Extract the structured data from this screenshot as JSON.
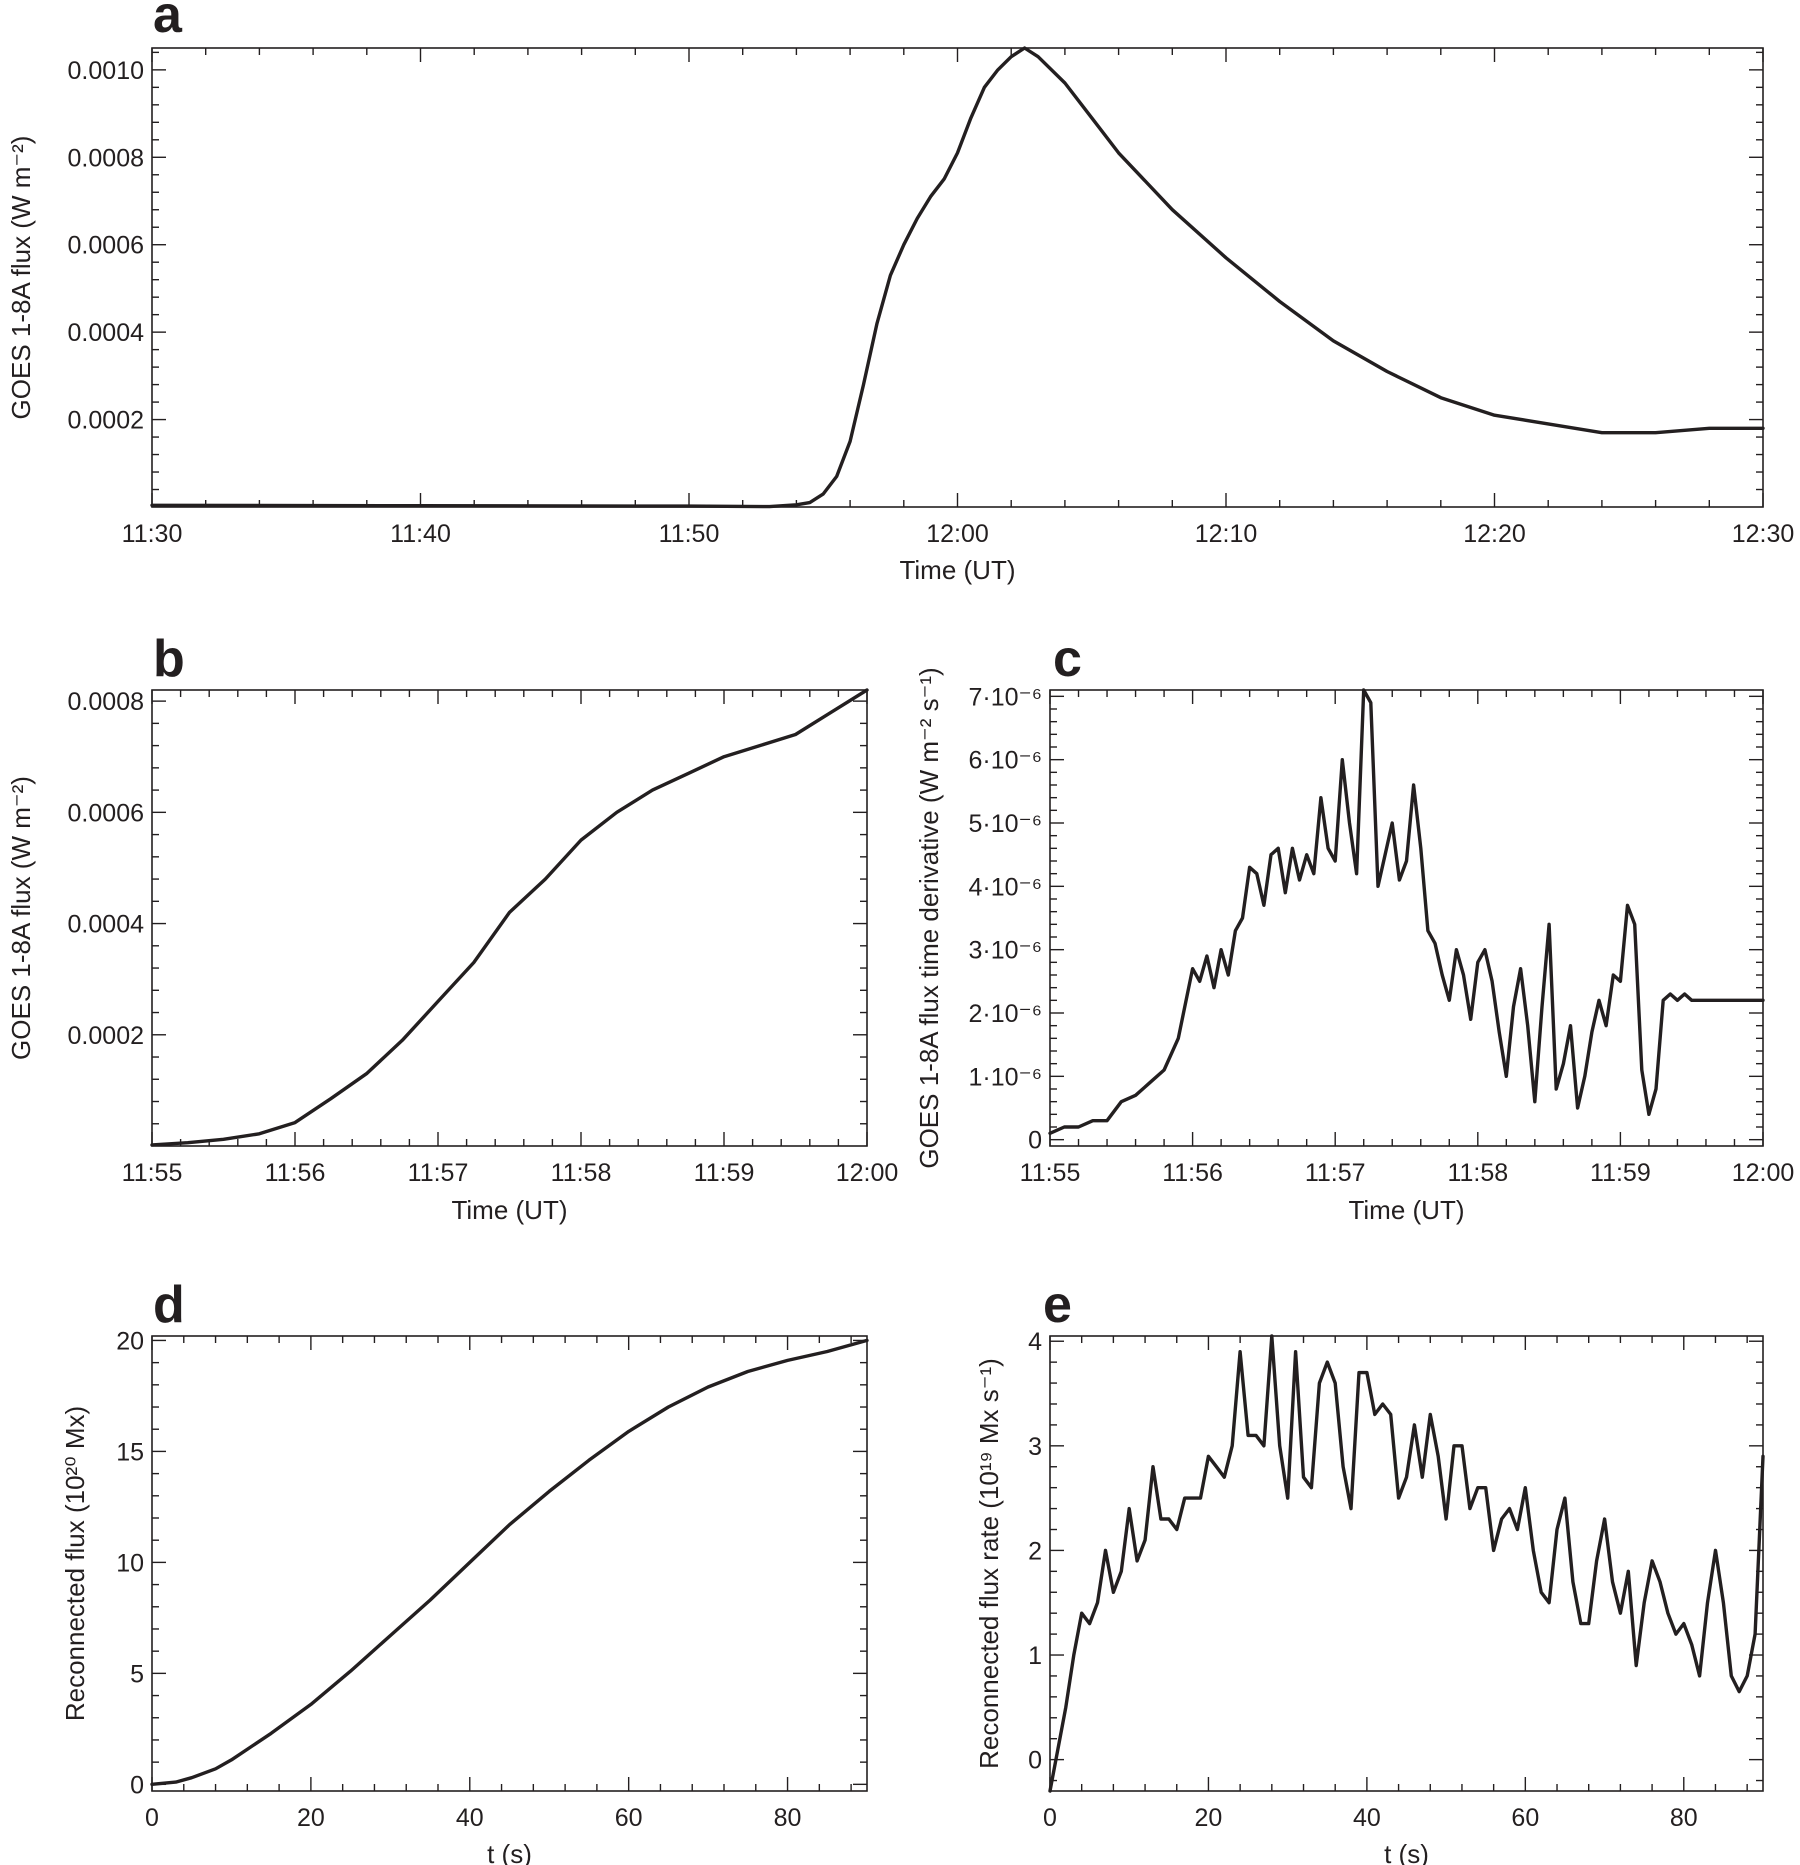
{
  "chart_data": [
    {
      "id": "a",
      "type": "line",
      "panel_label": "a",
      "xlabel": "Time (UT)",
      "ylabel": "GOES 1-8A flux (W m⁻²)",
      "x_units": "minutes after 11:30 UT",
      "xlim": [
        0,
        60
      ],
      "ylim": [
        0,
        0.00105
      ],
      "xticks": [
        {
          "v": 0,
          "label": "11:30"
        },
        {
          "v": 10,
          "label": "11:40"
        },
        {
          "v": 20,
          "label": "11:50"
        },
        {
          "v": 30,
          "label": "12:00"
        },
        {
          "v": 40,
          "label": "12:10"
        },
        {
          "v": 50,
          "label": "12:20"
        },
        {
          "v": 60,
          "label": "12:30"
        }
      ],
      "yticks": [
        {
          "v": 0.0002,
          "label": "0.0002"
        },
        {
          "v": 0.0004,
          "label": "0.0004"
        },
        {
          "v": 0.0006,
          "label": "0.0006"
        },
        {
          "v": 0.0008,
          "label": "0.0008"
        },
        {
          "v": 0.001,
          "label": "0.0010"
        }
      ],
      "series": [
        {
          "name": "GOES 1-8A flux",
          "x": [
            0,
            10,
            20,
            23,
            24,
            24.5,
            25,
            25.5,
            26,
            26.5,
            27,
            27.5,
            28,
            28.5,
            29,
            29.5,
            30,
            30.5,
            31,
            31.5,
            32,
            32.5,
            33,
            34,
            35,
            36,
            38,
            40,
            42,
            44,
            46,
            48,
            50,
            52,
            54,
            56,
            58,
            60
          ],
          "y": [
            4e-06,
            3e-06,
            2e-06,
            1e-06,
            5e-06,
            1e-05,
            3e-05,
            7e-05,
            0.00015,
            0.00028,
            0.00042,
            0.00053,
            0.0006,
            0.00066,
            0.00071,
            0.00075,
            0.00081,
            0.00089,
            0.00096,
            0.001,
            0.00103,
            0.00105,
            0.00103,
            0.00097,
            0.00089,
            0.00081,
            0.00068,
            0.00057,
            0.00047,
            0.00038,
            0.00031,
            0.00025,
            0.00021,
            0.00019,
            0.00017,
            0.00017,
            0.00018,
            0.00018
          ]
        }
      ]
    },
    {
      "id": "b",
      "type": "line",
      "panel_label": "b",
      "xlabel": "Time (UT)",
      "ylabel": "GOES 1-8A flux (W m⁻²)",
      "x_units": "minutes after 11:55 UT",
      "xlim": [
        0,
        5
      ],
      "ylim": [
        0,
        0.00082
      ],
      "xticks": [
        {
          "v": 0,
          "label": "11:55"
        },
        {
          "v": 1,
          "label": "11:56"
        },
        {
          "v": 2,
          "label": "11:57"
        },
        {
          "v": 3,
          "label": "11:58"
        },
        {
          "v": 4,
          "label": "11:59"
        },
        {
          "v": 5,
          "label": "12:00"
        }
      ],
      "yticks": [
        {
          "v": 0.0002,
          "label": "0.0002"
        },
        {
          "v": 0.0004,
          "label": "0.0004"
        },
        {
          "v": 0.0006,
          "label": "0.0006"
        },
        {
          "v": 0.0008,
          "label": "0.0008"
        }
      ],
      "series": [
        {
          "name": "GOES 1-8A flux",
          "x": [
            0,
            0.25,
            0.5,
            0.75,
            1,
            1.25,
            1.5,
            1.75,
            2,
            2.25,
            2.5,
            2.75,
            3,
            3.25,
            3.5,
            3.75,
            4,
            4.25,
            4.5,
            4.75,
            5
          ],
          "y": [
            2e-06,
            6e-06,
            1.2e-05,
            2.2e-05,
            4.2e-05,
            8.5e-05,
            0.00013,
            0.00019,
            0.00026,
            0.00033,
            0.00042,
            0.00048,
            0.00055,
            0.0006,
            0.00064,
            0.00067,
            0.0007,
            0.00072,
            0.00074,
            0.00078,
            0.00082
          ]
        }
      ]
    },
    {
      "id": "c",
      "type": "line",
      "panel_label": "c",
      "xlabel": "Time (UT)",
      "ylabel": "GOES 1-8A flux time derivative (W m⁻² s⁻¹)",
      "x_units": "minutes after 11:55 UT",
      "xlim": [
        0,
        5
      ],
      "ylim": [
        -1e-07,
        7.1e-06
      ],
      "xticks": [
        {
          "v": 0,
          "label": "11:55"
        },
        {
          "v": 1,
          "label": "11:56"
        },
        {
          "v": 2,
          "label": "11:57"
        },
        {
          "v": 3,
          "label": "11:58"
        },
        {
          "v": 4,
          "label": "11:59"
        },
        {
          "v": 5,
          "label": "12:00"
        }
      ],
      "yticks": [
        {
          "v": 0,
          "label": "0"
        },
        {
          "v": 1e-06,
          "label": "1·10⁻⁶"
        },
        {
          "v": 2e-06,
          "label": "2·10⁻⁶"
        },
        {
          "v": 3e-06,
          "label": "3·10⁻⁶"
        },
        {
          "v": 4e-06,
          "label": "4·10⁻⁶"
        },
        {
          "v": 5e-06,
          "label": "5·10⁻⁶"
        },
        {
          "v": 6e-06,
          "label": "6·10⁻⁶"
        },
        {
          "v": 7e-06,
          "label": "7·10⁻⁶"
        }
      ],
      "series": [
        {
          "name": "flux time derivative",
          "x": [
            0,
            0.1,
            0.2,
            0.3,
            0.4,
            0.5,
            0.6,
            0.7,
            0.8,
            0.9,
            1.0,
            1.05,
            1.1,
            1.15,
            1.2,
            1.25,
            1.3,
            1.35,
            1.4,
            1.45,
            1.5,
            1.55,
            1.6,
            1.65,
            1.7,
            1.75,
            1.8,
            1.85,
            1.9,
            1.95,
            2.0,
            2.05,
            2.1,
            2.15,
            2.2,
            2.25,
            2.3,
            2.35,
            2.4,
            2.45,
            2.5,
            2.55,
            2.6,
            2.65,
            2.7,
            2.75,
            2.8,
            2.85,
            2.9,
            2.95,
            3.0,
            3.05,
            3.1,
            3.15,
            3.2,
            3.25,
            3.3,
            3.35,
            3.4,
            3.45,
            3.5,
            3.55,
            3.6,
            3.65,
            3.7,
            3.75,
            3.8,
            3.85,
            3.9,
            3.95,
            4.0,
            4.05,
            4.1,
            4.15,
            4.2,
            4.25,
            4.3,
            4.35,
            4.4,
            4.45,
            4.5,
            4.55,
            4.6,
            4.65,
            4.7,
            4.75,
            4.8,
            4.85,
            4.9,
            4.95,
            5.0
          ],
          "y": [
            1e-07,
            2e-07,
            2e-07,
            3e-07,
            3e-07,
            6e-07,
            7e-07,
            9e-07,
            1.1e-06,
            1.6e-06,
            2.7e-06,
            2.5e-06,
            2.9e-06,
            2.4e-06,
            3e-06,
            2.6e-06,
            3.3e-06,
            3.5e-06,
            4.3e-06,
            4.2e-06,
            3.7e-06,
            4.5e-06,
            4.6e-06,
            3.9e-06,
            4.6e-06,
            4.1e-06,
            4.5e-06,
            4.2e-06,
            5.4e-06,
            4.6e-06,
            4.4e-06,
            6e-06,
            5e-06,
            4.2e-06,
            7.1e-06,
            6.9e-06,
            4e-06,
            4.5e-06,
            5e-06,
            4.1e-06,
            4.4e-06,
            5.6e-06,
            4.6e-06,
            3.3e-06,
            3.1e-06,
            2.6e-06,
            2.2e-06,
            3e-06,
            2.6e-06,
            1.9e-06,
            2.8e-06,
            3e-06,
            2.5e-06,
            1.7e-06,
            1e-06,
            2.1e-06,
            2.7e-06,
            1.8e-06,
            6e-07,
            2.1e-06,
            3.4e-06,
            8e-07,
            1.2e-06,
            1.8e-06,
            5e-07,
            1e-06,
            1.7e-06,
            2.2e-06,
            1.8e-06,
            2.6e-06,
            2.5e-06,
            3.7e-06,
            3.4e-06,
            1.1e-06,
            4e-07,
            8e-07,
            2.2e-06,
            2.3e-06,
            2.2e-06,
            2.3e-06,
            2.2e-06,
            2.2e-06,
            2.2e-06,
            2.2e-06,
            2.2e-06,
            2.2e-06,
            2.2e-06,
            2.2e-06,
            2.2e-06,
            2.2e-06,
            2.2e-06
          ]
        }
      ]
    },
    {
      "id": "d",
      "type": "line",
      "panel_label": "d",
      "xlabel": "t (s)",
      "ylabel": "Reconnected flux (10²⁰ Mx)",
      "xlim": [
        0,
        90
      ],
      "ylim": [
        -0.3,
        20.2
      ],
      "xticks": [
        {
          "v": 0,
          "label": "0"
        },
        {
          "v": 20,
          "label": "20"
        },
        {
          "v": 40,
          "label": "40"
        },
        {
          "v": 60,
          "label": "60"
        },
        {
          "v": 80,
          "label": "80"
        }
      ],
      "yticks": [
        {
          "v": 0,
          "label": "0"
        },
        {
          "v": 5,
          "label": "5"
        },
        {
          "v": 10,
          "label": "10"
        },
        {
          "v": 15,
          "label": "15"
        },
        {
          "v": 20,
          "label": "20"
        }
      ],
      "series": [
        {
          "name": "Reconnected flux",
          "x": [
            0,
            3,
            5,
            8,
            10,
            15,
            20,
            25,
            30,
            35,
            40,
            45,
            50,
            55,
            60,
            65,
            70,
            75,
            80,
            85,
            90
          ],
          "y": [
            0,
            0.1,
            0.3,
            0.7,
            1.1,
            2.3,
            3.6,
            5.1,
            6.7,
            8.3,
            10.0,
            11.7,
            13.2,
            14.6,
            15.9,
            17.0,
            17.9,
            18.6,
            19.1,
            19.5,
            20.0
          ]
        }
      ]
    },
    {
      "id": "e",
      "type": "line",
      "panel_label": "e",
      "xlabel": "t (s)",
      "ylabel": "Reconnected flux rate (10¹⁹ Mx s⁻¹)",
      "xlim": [
        0,
        90
      ],
      "ylim": [
        -0.3,
        4.05
      ],
      "xticks": [
        {
          "v": 0,
          "label": "0"
        },
        {
          "v": 20,
          "label": "20"
        },
        {
          "v": 40,
          "label": "40"
        },
        {
          "v": 60,
          "label": "60"
        },
        {
          "v": 80,
          "label": "80"
        }
      ],
      "yticks": [
        {
          "v": 0,
          "label": "0"
        },
        {
          "v": 1,
          "label": "1"
        },
        {
          "v": 2,
          "label": "2"
        },
        {
          "v": 3,
          "label": "3"
        },
        {
          "v": 4,
          "label": "4"
        }
      ],
      "series": [
        {
          "name": "Reconnected flux rate",
          "x": [
            0,
            1,
            2,
            3,
            4,
            5,
            6,
            7,
            8,
            9,
            10,
            11,
            12,
            13,
            14,
            15,
            16,
            17,
            18,
            19,
            20,
            21,
            22,
            23,
            24,
            25,
            26,
            27,
            28,
            29,
            30,
            31,
            32,
            33,
            34,
            35,
            36,
            37,
            38,
            39,
            40,
            41,
            42,
            43,
            44,
            45,
            46,
            47,
            48,
            49,
            50,
            51,
            52,
            53,
            54,
            55,
            56,
            57,
            58,
            59,
            60,
            61,
            62,
            63,
            64,
            65,
            66,
            67,
            68,
            69,
            70,
            71,
            72,
            73,
            74,
            75,
            76,
            77,
            78,
            79,
            80,
            81,
            82,
            83,
            84,
            85,
            86,
            87,
            88,
            89,
            90
          ],
          "y": [
            -0.3,
            0.1,
            0.5,
            1.0,
            1.4,
            1.3,
            1.5,
            2.0,
            1.6,
            1.8,
            2.4,
            1.9,
            2.1,
            2.8,
            2.3,
            2.3,
            2.2,
            2.5,
            2.5,
            2.5,
            2.9,
            2.8,
            2.7,
            3.0,
            3.9,
            3.1,
            3.1,
            3.0,
            4.05,
            3.0,
            2.5,
            3.9,
            2.7,
            2.6,
            3.6,
            3.8,
            3.6,
            2.8,
            2.4,
            3.7,
            3.7,
            3.3,
            3.4,
            3.3,
            2.5,
            2.7,
            3.2,
            2.7,
            3.3,
            2.9,
            2.3,
            3.0,
            3.0,
            2.4,
            2.6,
            2.6,
            2.0,
            2.3,
            2.4,
            2.2,
            2.6,
            2.0,
            1.6,
            1.5,
            2.2,
            2.5,
            1.7,
            1.3,
            1.3,
            1.9,
            2.3,
            1.7,
            1.4,
            1.8,
            0.9,
            1.5,
            1.9,
            1.7,
            1.4,
            1.2,
            1.3,
            1.1,
            0.8,
            1.5,
            2.0,
            1.5,
            0.8,
            0.65,
            0.8,
            1.2,
            2.9
          ]
        }
      ]
    }
  ]
}
